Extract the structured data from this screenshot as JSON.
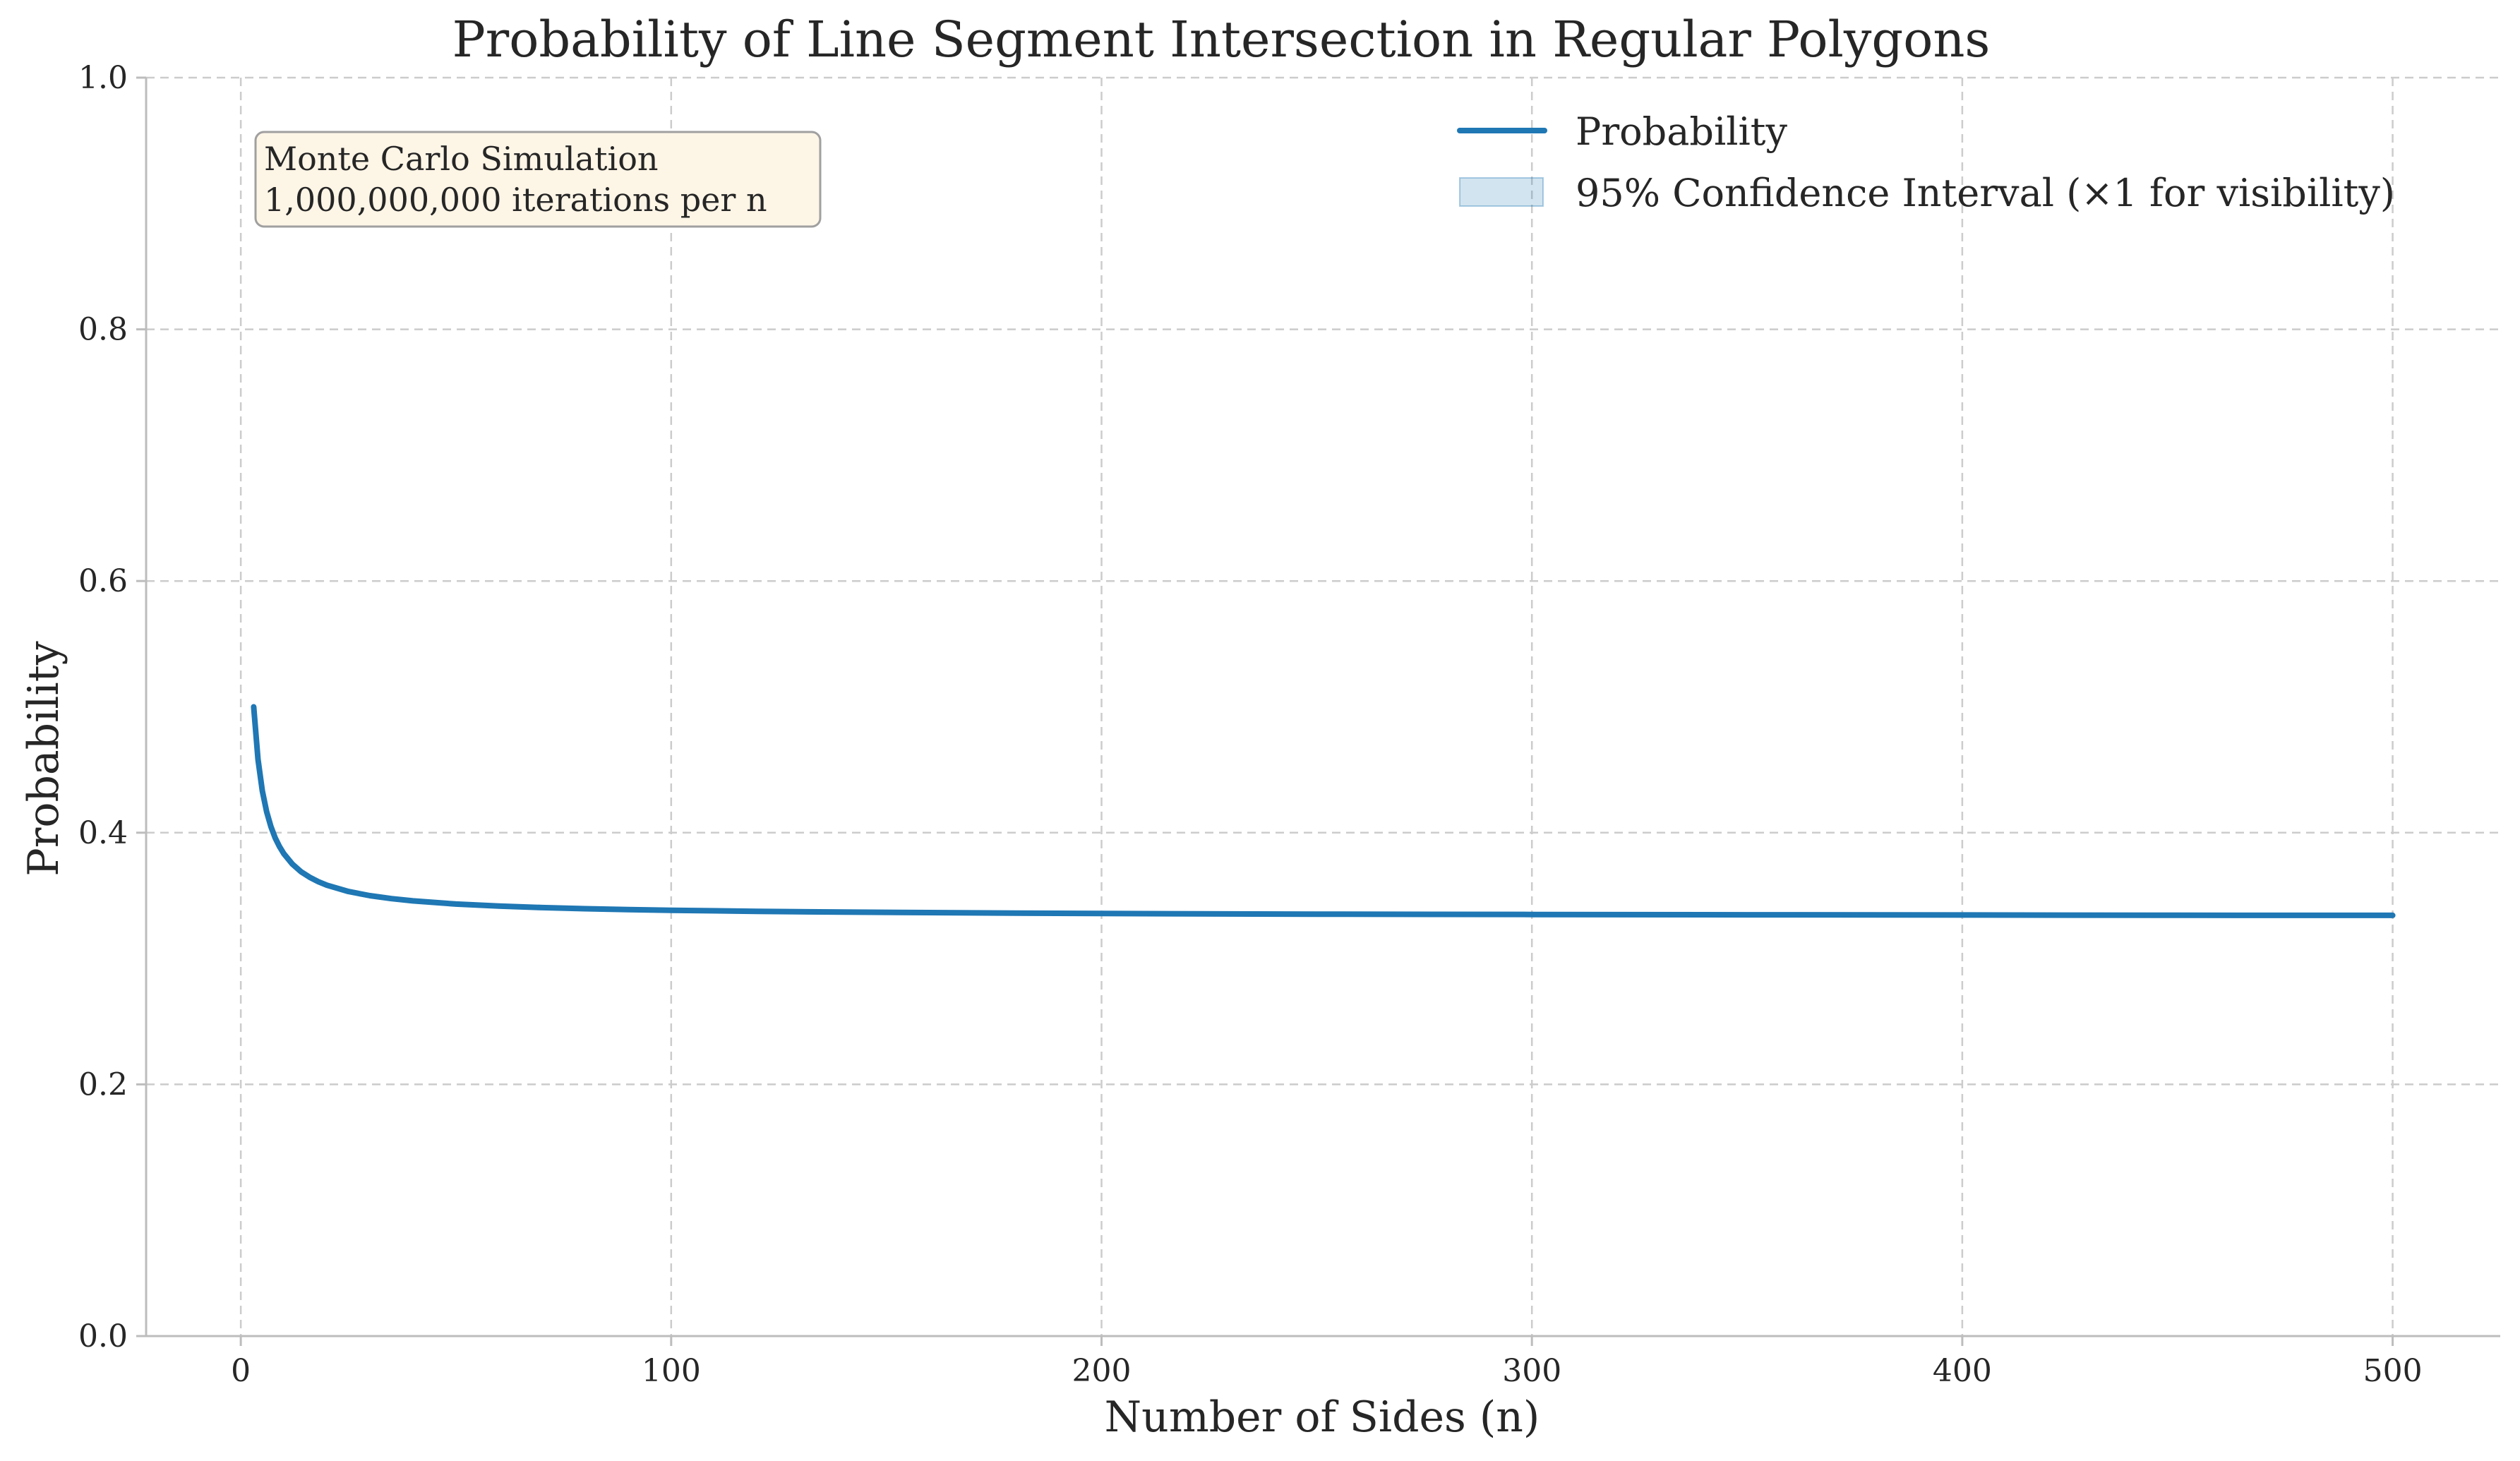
{
  "chart_data": {
    "type": "line",
    "title": "Probability of Line Segment Intersection in Regular Polygons",
    "xlabel": "Number of Sides (n)",
    "ylabel": "Probability",
    "xlim": [
      -22,
      525
    ],
    "ylim": [
      0.0,
      1.0
    ],
    "xticks": [
      0,
      100,
      200,
      300,
      400,
      500
    ],
    "xtick_labels": [
      "0",
      "100",
      "200",
      "300",
      "400",
      "500"
    ],
    "yticks": [
      0.0,
      0.2,
      0.4,
      0.6,
      0.8,
      1.0
    ],
    "ytick_labels": [
      "0.0",
      "0.2",
      "0.4",
      "0.6",
      "0.8",
      "1.0"
    ],
    "grid": true,
    "legend_position": "top-right",
    "series": [
      {
        "name": "Probability",
        "color": "#1f77b4",
        "x": [
          3,
          4,
          5,
          6,
          7,
          8,
          9,
          10,
          12,
          14,
          16,
          18,
          20,
          25,
          30,
          35,
          40,
          50,
          60,
          70,
          80,
          90,
          100,
          120,
          140,
          160,
          180,
          200,
          250,
          300,
          350,
          400,
          450,
          500
        ],
        "y": [
          0.5,
          0.4583,
          0.4333,
          0.4167,
          0.4048,
          0.3958,
          0.3889,
          0.3833,
          0.375,
          0.369,
          0.3646,
          0.3611,
          0.3583,
          0.3533,
          0.35,
          0.3476,
          0.3458,
          0.3433,
          0.3417,
          0.3405,
          0.3396,
          0.3389,
          0.3383,
          0.3375,
          0.3369,
          0.3365,
          0.3361,
          0.3358,
          0.3353,
          0.335,
          0.3348,
          0.3346,
          0.3344,
          0.3343
        ]
      }
    ],
    "confidence_band": {
      "name": "95% Confidence Interval (×1 for visibility)",
      "color": "#1f77b4",
      "opacity": 0.2
    },
    "annotation": {
      "lines": [
        "Monte Carlo Simulation",
        "1,000,000,000 iterations per n"
      ],
      "background": "#fdf5e6",
      "border": "#a0a0a0"
    }
  }
}
